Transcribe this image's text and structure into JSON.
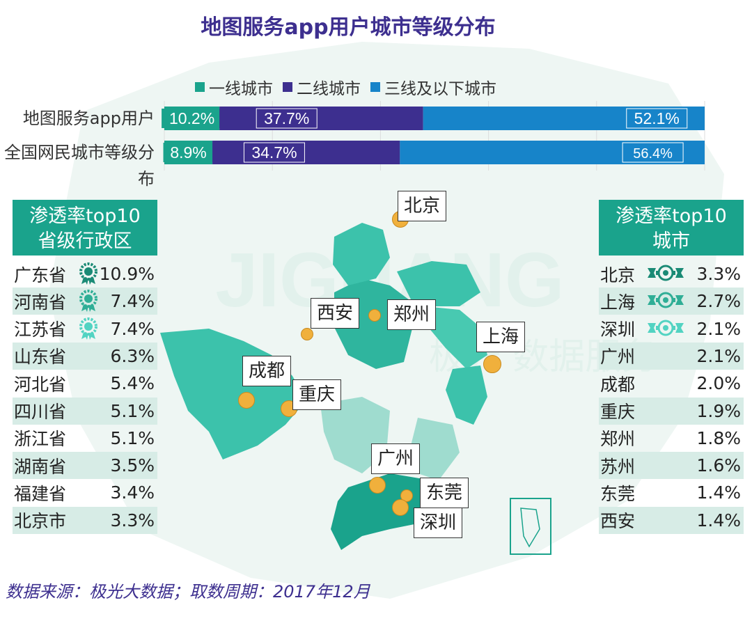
{
  "title": "地图服务app用户城市等级分布",
  "colors": {
    "tier1": "#1aa38c",
    "tier2": "#3d2f8f",
    "tier3": "#1784c9",
    "panel": "#1aa38c",
    "dot": "#f0b03c"
  },
  "chart_data": {
    "type": "bar",
    "stacked": true,
    "orientation": "horizontal",
    "percent": true,
    "categories": [
      "地图服务app用户",
      "全国网民城市等级分布"
    ],
    "series": [
      {
        "name": "一线城市",
        "values": [
          10.2,
          8.9
        ],
        "labels": [
          "10.2%",
          "8.9%"
        ]
      },
      {
        "name": "二线城市",
        "values": [
          37.7,
          34.7
        ],
        "labels": [
          "37.7%",
          "34.7%"
        ]
      },
      {
        "name": "三线及以下城市",
        "values": [
          52.1,
          56.4
        ],
        "labels": [
          "52.1%",
          "56.4%"
        ]
      }
    ],
    "xlim": [
      0,
      100
    ],
    "grid": true,
    "legend": "top"
  },
  "provinces": {
    "title": "渗透率top10省级行政区",
    "title_lines": [
      "渗透率top10",
      "省级行政区"
    ],
    "rows": [
      {
        "name": "广东省",
        "value": "10.9%",
        "medal": "gold"
      },
      {
        "name": "河南省",
        "value": "7.4%",
        "medal": "silver"
      },
      {
        "name": "江苏省",
        "value": "7.4%",
        "medal": "bronze"
      },
      {
        "name": "山东省",
        "value": "6.3%"
      },
      {
        "name": "河北省",
        "value": "5.4%"
      },
      {
        "name": "四川省",
        "value": "5.1%"
      },
      {
        "name": "浙江省",
        "value": "5.1%"
      },
      {
        "name": "湖南省",
        "value": "3.5%"
      },
      {
        "name": "福建省",
        "value": "3.4%"
      },
      {
        "name": "北京市",
        "value": "3.3%"
      }
    ]
  },
  "cities": {
    "title": "渗透率top10城市",
    "title_lines": [
      "渗透率top10",
      "城市"
    ],
    "rows": [
      {
        "name": "北京",
        "value": "3.3%",
        "medal": "gold"
      },
      {
        "name": "上海",
        "value": "2.7%",
        "medal": "silver"
      },
      {
        "name": "深圳",
        "value": "2.1%",
        "medal": "bronze"
      },
      {
        "name": "广州",
        "value": "2.1%"
      },
      {
        "name": "成都",
        "value": "2.0%"
      },
      {
        "name": "重庆",
        "value": "1.9%"
      },
      {
        "name": "郑州",
        "value": "1.8%"
      },
      {
        "name": "苏州",
        "value": "1.6%"
      },
      {
        "name": "东莞",
        "value": "1.4%"
      },
      {
        "name": "西安",
        "value": "1.4%"
      }
    ]
  },
  "map_labels": [
    "北京",
    "西安",
    "郑州",
    "上海",
    "成都",
    "重庆",
    "广州",
    "东莞",
    "深圳"
  ],
  "watermark": "JIGUANG 极光数据服务",
  "source": "数据来源：极光大数据；取数周期：2017年12月"
}
